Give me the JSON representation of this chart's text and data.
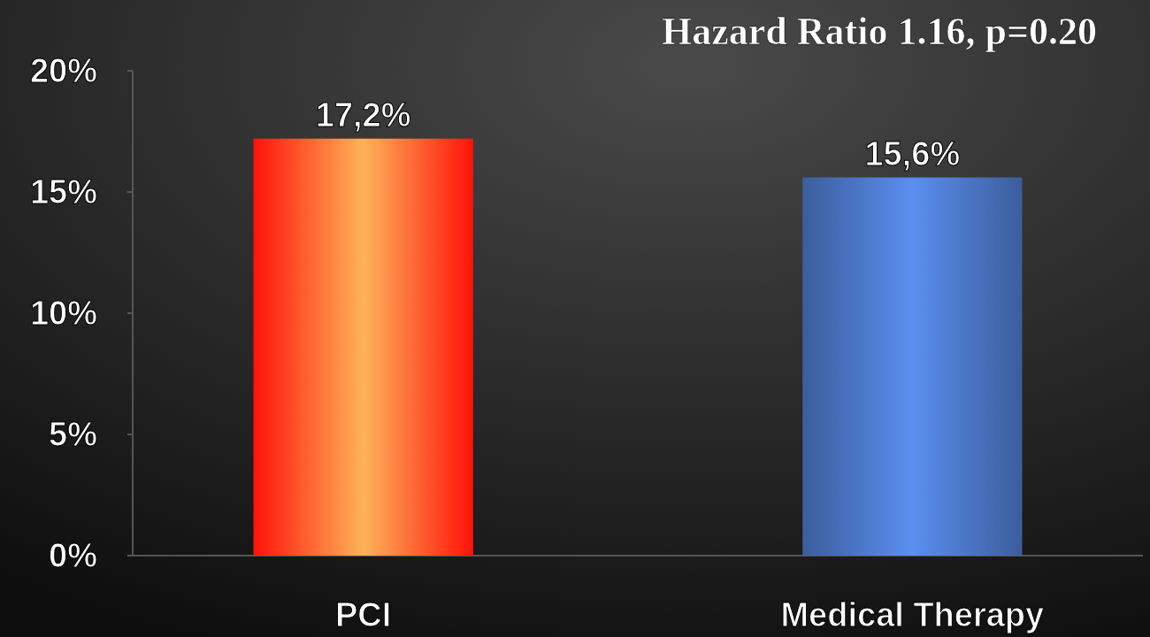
{
  "chart_data": {
    "type": "bar",
    "title": "Hazard Ratio 1.16, p=0.20",
    "categories": [
      "PCI",
      "Medical Therapy"
    ],
    "values": [
      17.2,
      15.6
    ],
    "colors": [
      "#fdb35a",
      "#5a8ff0"
    ],
    "value_labels": [
      "17,2%",
      "15,6%"
    ],
    "ylim": [
      0,
      20
    ],
    "yticks": [
      {
        "value": 0,
        "label": "0%"
      },
      {
        "value": 5,
        "label": "5%"
      },
      {
        "value": 10,
        "label": "10%"
      },
      {
        "value": 15,
        "label": "15%"
      },
      {
        "value": 20,
        "label": "20%"
      }
    ],
    "grid": false
  }
}
